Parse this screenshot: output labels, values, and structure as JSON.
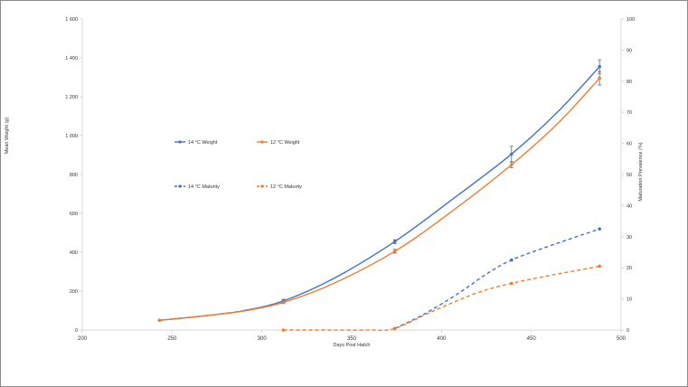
{
  "chart_data": {
    "type": "line",
    "title": "",
    "xlabel": "Days Post Hatch",
    "ylabel_left": "Mean Weight (g)",
    "ylabel_right": "Maturation Prevalence (%)",
    "xlim": [
      200,
      500
    ],
    "ylim_left": [
      0,
      1600
    ],
    "ylim_right": [
      0,
      100
    ],
    "x_ticks": [
      "200",
      "250",
      "300",
      "350",
      "400",
      "450",
      "500"
    ],
    "y_left_ticks": [
      "0",
      "200",
      "400",
      "600",
      "800",
      "1 000",
      "1 200",
      "1 400",
      "1 600"
    ],
    "y_right_ticks": [
      "0",
      "10",
      "20",
      "30",
      "40",
      "50",
      "60",
      "70",
      "80",
      "90",
      "100"
    ],
    "grid": false,
    "legend_position": "center-left",
    "series": [
      {
        "name": "14 °C Weight",
        "axis": "left",
        "style": "solid",
        "color": "#4472c4",
        "x": [
          243,
          312,
          374,
          439,
          488
        ],
        "y": [
          50,
          150,
          455,
          905,
          1355
        ],
        "error": [
          0,
          8,
          10,
          40,
          35
        ],
        "curve": [
          [
            243,
            50
          ],
          [
            270,
            75
          ],
          [
            290,
            100
          ],
          [
            312,
            150
          ],
          [
            340,
            265
          ],
          [
            374,
            455
          ],
          [
            405,
            665
          ],
          [
            439,
            905
          ],
          [
            465,
            1125
          ],
          [
            488,
            1355
          ]
        ]
      },
      {
        "name": "12 °C Weight",
        "axis": "left",
        "style": "solid",
        "color": "#ed7d31",
        "x": [
          243,
          312,
          374,
          439,
          488
        ],
        "y": [
          50,
          142,
          405,
          850,
          1295
        ],
        "error": [
          0,
          6,
          10,
          15,
          35
        ],
        "curve": [
          [
            243,
            50
          ],
          [
            270,
            75
          ],
          [
            290,
            98
          ],
          [
            312,
            142
          ],
          [
            340,
            240
          ],
          [
            374,
            405
          ],
          [
            405,
            605
          ],
          [
            439,
            850
          ],
          [
            465,
            1065
          ],
          [
            488,
            1295
          ]
        ]
      },
      {
        "name": "14 °C Maturity",
        "axis": "right",
        "style": "dashed",
        "color": "#4472c4",
        "x": [
          374,
          439,
          488
        ],
        "y": [
          0.5,
          22.5,
          32.5
        ],
        "curve": [
          [
            374,
            0.5
          ],
          [
            390,
            5
          ],
          [
            410,
            12
          ],
          [
            425,
            18
          ],
          [
            439,
            22.5
          ],
          [
            460,
            27
          ],
          [
            488,
            32.5
          ]
        ]
      },
      {
        "name": "12 °C Maturity",
        "axis": "right",
        "style": "dashed",
        "color": "#ed7d31",
        "x": [
          312,
          374,
          439,
          488
        ],
        "y": [
          0,
          0.5,
          15,
          20.5
        ],
        "curve": [
          [
            312,
            0
          ],
          [
            335,
            0
          ],
          [
            360,
            0
          ],
          [
            374,
            0.5
          ],
          [
            395,
            6
          ],
          [
            420,
            12
          ],
          [
            439,
            15
          ],
          [
            460,
            17.5
          ],
          [
            488,
            20.5
          ]
        ]
      }
    ]
  }
}
